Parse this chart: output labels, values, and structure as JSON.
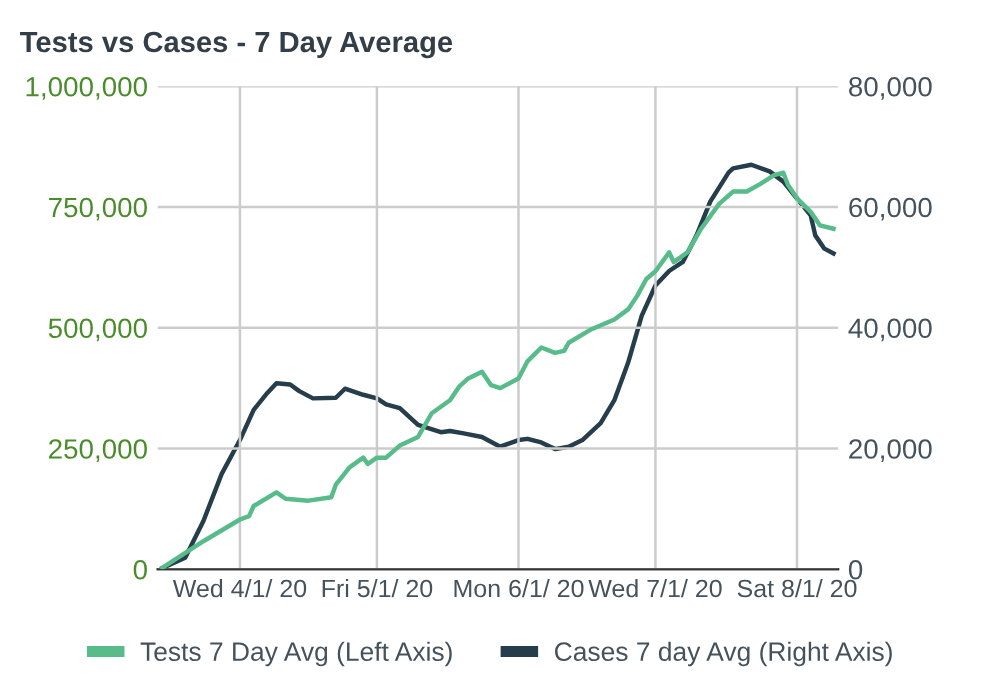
{
  "chart_data": {
    "type": "line",
    "title": "Tests vs Cases - 7 Day Average",
    "xlim": [
      "2020-03-14",
      "2020-08-10"
    ],
    "xticks": [
      {
        "value": "2020-04-01",
        "label": "Wed 4/1/ 20"
      },
      {
        "value": "2020-05-01",
        "label": "Fri 5/1/ 20"
      },
      {
        "value": "2020-06-01",
        "label": "Mon 6/1/ 20"
      },
      {
        "value": "2020-07-01",
        "label": "Wed 7/1/ 20"
      },
      {
        "value": "2020-08-01",
        "label": "Sat 8/1/ 20"
      }
    ],
    "ylim": [
      0,
      1000000
    ],
    "yticks": [
      {
        "value": 0,
        "label": "0"
      },
      {
        "value": 250000,
        "label": "250,000"
      },
      {
        "value": 500000,
        "label": "500,000"
      },
      {
        "value": 750000,
        "label": "750,000"
      },
      {
        "value": 1000000,
        "label": "1,000,000"
      }
    ],
    "y2lim": [
      0,
      80000
    ],
    "y2ticks": [
      {
        "value": 0,
        "label": "0"
      },
      {
        "value": 20000,
        "label": "20,000"
      },
      {
        "value": 40000,
        "label": "40,000"
      },
      {
        "value": 60000,
        "label": "60,000"
      },
      {
        "value": 80000,
        "label": "80,000"
      }
    ],
    "grid": true,
    "legend": "bottom",
    "marker": "none",
    "line_style": "solid",
    "series": [
      {
        "name": "Tests 7 Day Avg (Left Axis)",
        "color": "#57bb8a",
        "axis": "y",
        "x": [
          "2020-03-15",
          "2020-03-24",
          "2020-04-01",
          "2020-04-03",
          "2020-04-04",
          "2020-04-09",
          "2020-04-11",
          "2020-04-16",
          "2020-04-21",
          "2020-04-22",
          "2020-04-25",
          "2020-04-28",
          "2020-04-29",
          "2020-05-01",
          "2020-05-03",
          "2020-05-06",
          "2020-05-10",
          "2020-05-13",
          "2020-05-17",
          "2020-05-19",
          "2020-05-21",
          "2020-05-24",
          "2020-05-26",
          "2020-05-28",
          "2020-06-01",
          "2020-06-03",
          "2020-06-06",
          "2020-06-09",
          "2020-06-11",
          "2020-06-12",
          "2020-06-17",
          "2020-06-22",
          "2020-06-25",
          "2020-06-27",
          "2020-06-29",
          "2020-07-01",
          "2020-07-04",
          "2020-07-05",
          "2020-07-08",
          "2020-07-11",
          "2020-07-15",
          "2020-07-18",
          "2020-07-21",
          "2020-07-24",
          "2020-07-27",
          "2020-07-29",
          "2020-07-30",
          "2020-08-01",
          "2020-08-04",
          "2020-08-06",
          "2020-08-09"
        ],
        "values": [
          3000,
          58000,
          103000,
          110000,
          131000,
          159000,
          146000,
          142000,
          149000,
          175000,
          211000,
          231000,
          218000,
          231000,
          231000,
          256000,
          274000,
          323000,
          350000,
          378000,
          395000,
          409000,
          381000,
          375000,
          395000,
          431000,
          459000,
          448000,
          452000,
          469000,
          497000,
          517000,
          538000,
          566000,
          601000,
          617000,
          656000,
          636000,
          656000,
          705000,
          757000,
          782000,
          782000,
          798000,
          816000,
          821000,
          796000,
          768000,
          740000,
          712000,
          705000
        ]
      },
      {
        "name": "Cases 7 day Avg (Right Axis)",
        "color": "#263d4b",
        "axis": "y2",
        "x": [
          "2020-03-15",
          "2020-03-20",
          "2020-03-24",
          "2020-03-28",
          "2020-04-01",
          "2020-04-04",
          "2020-04-07",
          "2020-04-09",
          "2020-04-12",
          "2020-04-14",
          "2020-04-17",
          "2020-04-22",
          "2020-04-24",
          "2020-04-28",
          "2020-05-01",
          "2020-05-03",
          "2020-05-06",
          "2020-05-10",
          "2020-05-15",
          "2020-05-17",
          "2020-05-20",
          "2020-05-24",
          "2020-05-28",
          "2020-06-01",
          "2020-06-03",
          "2020-06-06",
          "2020-06-09",
          "2020-06-12",
          "2020-06-15",
          "2020-06-19",
          "2020-06-22",
          "2020-06-25",
          "2020-06-28",
          "2020-07-01",
          "2020-07-04",
          "2020-07-07",
          "2020-07-10",
          "2020-07-13",
          "2020-07-17",
          "2020-07-18",
          "2020-07-22",
          "2020-07-26",
          "2020-07-29",
          "2020-08-01",
          "2020-08-04",
          "2020-08-05",
          "2020-08-07",
          "2020-08-09"
        ],
        "values": [
          200,
          1900,
          8000,
          15800,
          21400,
          26400,
          29200,
          30800,
          30600,
          29500,
          28300,
          28400,
          29900,
          28900,
          28300,
          27300,
          26700,
          23900,
          22700,
          22900,
          22500,
          21900,
          20300,
          21400,
          21600,
          21000,
          19900,
          20300,
          21400,
          24200,
          28000,
          34200,
          42000,
          47000,
          49400,
          50900,
          55300,
          60900,
          65700,
          66400,
          67000,
          65900,
          64200,
          61400,
          58600,
          55300,
          53100,
          52300
        ]
      }
    ]
  }
}
